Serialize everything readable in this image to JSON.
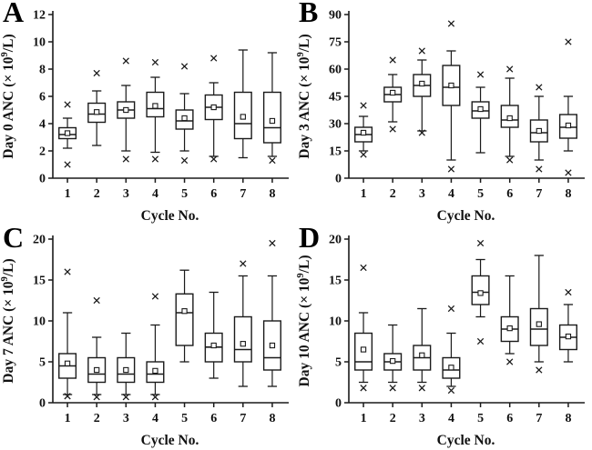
{
  "colors": {
    "stroke": "#1a1a1a",
    "box_fill": "#ffffff",
    "background": "#ffffff"
  },
  "chart_data": [
    {
      "type": "box",
      "panel": "A",
      "xlabel": "Cycle No.",
      "ylabel": {
        "pre": "Day 0 ANC (× 10",
        "sup": "9",
        "post": "/L)"
      },
      "ylim": [
        0,
        12
      ],
      "yticks": [
        0,
        2,
        4,
        6,
        8,
        10,
        12
      ],
      "categories": [
        "1",
        "2",
        "3",
        "4",
        "5",
        "6",
        "7",
        "8"
      ],
      "boxes": [
        {
          "low": 2.2,
          "q1": 2.9,
          "median": 3.2,
          "q3": 3.7,
          "high": 4.4,
          "mean": 3.3,
          "outliers": [
            5.4,
            1.0
          ]
        },
        {
          "low": 2.4,
          "q1": 4.1,
          "median": 4.7,
          "q3": 5.5,
          "high": 6.4,
          "mean": 4.85,
          "outliers": [
            7.7
          ]
        },
        {
          "low": 2.0,
          "q1": 4.4,
          "median": 5.0,
          "q3": 5.6,
          "high": 6.8,
          "mean": 5.0,
          "outliers": [
            8.6,
            1.4
          ]
        },
        {
          "low": 1.9,
          "q1": 4.5,
          "median": 5.1,
          "q3": 6.3,
          "high": 7.4,
          "mean": 5.3,
          "outliers": [
            8.5,
            1.4
          ]
        },
        {
          "low": 2.0,
          "q1": 3.6,
          "median": 4.2,
          "q3": 5.0,
          "high": 6.2,
          "mean": 4.4,
          "outliers": [
            8.2,
            1.3
          ]
        },
        {
          "low": 1.6,
          "q1": 4.3,
          "median": 5.2,
          "q3": 6.1,
          "high": 7.0,
          "mean": 5.2,
          "outliers": [
            8.8,
            1.4
          ]
        },
        {
          "low": 1.5,
          "q1": 2.9,
          "median": 4.0,
          "q3": 6.3,
          "high": 9.4,
          "mean": 4.5,
          "outliers": []
        },
        {
          "low": 1.6,
          "q1": 2.6,
          "median": 3.7,
          "q3": 6.3,
          "high": 9.2,
          "mean": 4.2,
          "outliers": [
            1.3
          ]
        }
      ]
    },
    {
      "type": "box",
      "panel": "B",
      "xlabel": "Cycle No.",
      "ylabel": {
        "pre": "Day 3 ANC (× 10",
        "sup": "9",
        "post": "/L)"
      },
      "ylim": [
        0,
        90
      ],
      "yticks": [
        0,
        15,
        30,
        45,
        60,
        75,
        90
      ],
      "categories": [
        "1",
        "2",
        "3",
        "4",
        "5",
        "6",
        "7",
        "8"
      ],
      "boxes": [
        {
          "low": 15,
          "q1": 20,
          "median": 24,
          "q3": 28,
          "high": 34,
          "mean": 25,
          "outliers": [
            40,
            13
          ]
        },
        {
          "low": 31,
          "q1": 42,
          "median": 46,
          "q3": 50,
          "high": 57,
          "mean": 47,
          "outliers": [
            65,
            27
          ]
        },
        {
          "low": 26,
          "q1": 45,
          "median": 51,
          "q3": 57,
          "high": 65,
          "mean": 52,
          "outliers": [
            70,
            25
          ]
        },
        {
          "low": 10,
          "q1": 40,
          "median": 50,
          "q3": 62,
          "high": 70,
          "mean": 51,
          "outliers": [
            85,
            5
          ]
        },
        {
          "low": 14,
          "q1": 33,
          "median": 37,
          "q3": 42,
          "high": 50,
          "mean": 38,
          "outliers": [
            57
          ]
        },
        {
          "low": 12,
          "q1": 28,
          "median": 32,
          "q3": 40,
          "high": 55,
          "mean": 33,
          "outliers": [
            60,
            10
          ]
        },
        {
          "low": 10,
          "q1": 20,
          "median": 25,
          "q3": 32,
          "high": 45,
          "mean": 26,
          "outliers": [
            50,
            5
          ]
        },
        {
          "low": 15,
          "q1": 22,
          "median": 28,
          "q3": 35,
          "high": 45,
          "mean": 29,
          "outliers": [
            75,
            3
          ]
        }
      ]
    },
    {
      "type": "box",
      "panel": "C",
      "xlabel": "Cycle No.",
      "ylabel": {
        "pre": "Day 7 ANC (× 10",
        "sup": "9",
        "post": "/L)"
      },
      "ylim": [
        0,
        20
      ],
      "yticks": [
        0,
        5,
        10,
        15,
        20
      ],
      "categories": [
        "1",
        "2",
        "3",
        "4",
        "5",
        "6",
        "7",
        "8"
      ],
      "boxes": [
        {
          "low": 1.0,
          "q1": 3.0,
          "median": 4.5,
          "q3": 6.0,
          "high": 11.0,
          "mean": 4.8,
          "outliers": [
            16,
            0.8
          ]
        },
        {
          "low": 1.0,
          "q1": 2.5,
          "median": 3.5,
          "q3": 5.5,
          "high": 8.0,
          "mean": 4.0,
          "outliers": [
            12.5,
            0.7
          ]
        },
        {
          "low": 1.0,
          "q1": 2.5,
          "median": 3.5,
          "q3": 5.5,
          "high": 8.5,
          "mean": 4.0,
          "outliers": [
            0.7
          ]
        },
        {
          "low": 1.0,
          "q1": 2.5,
          "median": 3.5,
          "q3": 5.0,
          "high": 9.5,
          "mean": 3.9,
          "outliers": [
            13,
            0.7
          ]
        },
        {
          "low": 5.0,
          "q1": 7.0,
          "median": 11.0,
          "q3": 13.3,
          "high": 16.2,
          "mean": 11.2,
          "outliers": []
        },
        {
          "low": 3.0,
          "q1": 5.0,
          "median": 6.8,
          "q3": 8.5,
          "high": 13.5,
          "mean": 7.0,
          "outliers": []
        },
        {
          "low": 2.0,
          "q1": 5.0,
          "median": 6.5,
          "q3": 10.5,
          "high": 15.5,
          "mean": 7.2,
          "outliers": [
            17
          ]
        },
        {
          "low": 2.0,
          "q1": 4.0,
          "median": 5.5,
          "q3": 10.0,
          "high": 15.5,
          "mean": 7.0,
          "outliers": [
            19.5
          ]
        }
      ]
    },
    {
      "type": "box",
      "panel": "D",
      "xlabel": "Cycle No.",
      "ylabel": {
        "pre": "Day 10 ANC (× 10",
        "sup": "9",
        "post": "/L)"
      },
      "ylim": [
        0,
        20
      ],
      "yticks": [
        0,
        5,
        10,
        15,
        20
      ],
      "categories": [
        "1",
        "2",
        "3",
        "4",
        "5",
        "6",
        "7",
        "8"
      ],
      "boxes": [
        {
          "low": 2.5,
          "q1": 4.0,
          "median": 5.0,
          "q3": 8.5,
          "high": 11.0,
          "mean": 6.5,
          "outliers": [
            16.5,
            1.8
          ]
        },
        {
          "low": 2.5,
          "q1": 4.0,
          "median": 5.0,
          "q3": 6.0,
          "high": 9.5,
          "mean": 5.1,
          "outliers": [
            1.8
          ]
        },
        {
          "low": 2.5,
          "q1": 4.0,
          "median": 5.5,
          "q3": 7.0,
          "high": 11.5,
          "mean": 5.8,
          "outliers": [
            1.8
          ]
        },
        {
          "low": 2.0,
          "q1": 3.0,
          "median": 4.0,
          "q3": 5.5,
          "high": 8.5,
          "mean": 4.3,
          "outliers": [
            11.5,
            1.5
          ]
        },
        {
          "low": 10.5,
          "q1": 12.0,
          "median": 13.5,
          "q3": 15.5,
          "high": 17.5,
          "mean": 13.4,
          "outliers": [
            19.5,
            7.5
          ]
        },
        {
          "low": 6.0,
          "q1": 7.5,
          "median": 9.0,
          "q3": 10.5,
          "high": 15.5,
          "mean": 9.1,
          "outliers": [
            5.0
          ]
        },
        {
          "low": 5.0,
          "q1": 7.0,
          "median": 9.0,
          "q3": 11.5,
          "high": 18.0,
          "mean": 9.6,
          "outliers": [
            4.0
          ]
        },
        {
          "low": 5.0,
          "q1": 6.5,
          "median": 8.0,
          "q3": 9.5,
          "high": 12.0,
          "mean": 8.1,
          "outliers": [
            13.5
          ]
        }
      ]
    }
  ]
}
